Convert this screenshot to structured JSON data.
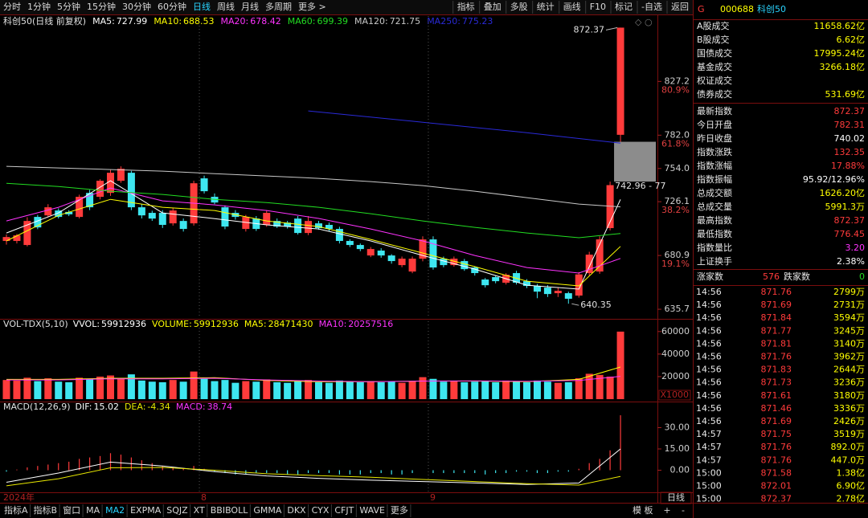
{
  "toolbar": {
    "periods": [
      "分时",
      "1分钟",
      "5分钟",
      "15分钟",
      "30分钟",
      "60分钟",
      "日线",
      "周线",
      "月线",
      "多周期",
      "更多 >"
    ],
    "active": 6,
    "buttons": [
      "指标",
      "叠加",
      "多股",
      "统计",
      "画线",
      "F10",
      "标记",
      "-自选",
      "返回"
    ]
  },
  "chart_data": [
    {
      "type": "candlestick",
      "title": "科创50(日线 前复权)",
      "up_color": "#ff3b3b",
      "down_color": "#3ee6f0",
      "ylim": [
        629,
        874
      ],
      "yticks": [
        635.7,
        680.9,
        726.1,
        {
          "value": 754,
          "label": "754.0"
        },
        {
          "value": 782,
          "label": "782.0"
        },
        827.2
      ],
      "fib_ticks": [
        {
          "value": 680.9,
          "label": "19.1%"
        },
        {
          "value": 726.1,
          "label": "38.2%"
        },
        {
          "value": 782,
          "label": "61.8%"
        },
        {
          "value": 827.2,
          "label": "80.9%"
        }
      ],
      "x_labels": [
        {
          "index": 0,
          "label": "2024年"
        },
        {
          "index": 19,
          "label": "8"
        },
        {
          "index": 41,
          "label": "9"
        }
      ],
      "open": [
        693.1,
        693.1,
        689.7,
        713.3,
        714.6,
        718.7,
        717.5,
        713.3,
        733.5,
        730.2,
        733.5,
        743.7,
        750.4,
        721.4,
        716.7,
        716.7,
        707.9,
        709.9,
        707.9,
        745.7,
        730.2,
        721.4,
        716.7,
        703.2,
        711.9,
        706.6,
        709.9,
        708.5,
        711.9,
        699.8,
        707.9,
        706.6,
        703.2,
        693.1,
        689.7,
        680.9,
        685.0,
        680.9,
        672.8,
        667.4,
        678.2,
        694.4,
        678.2,
        672.8,
        676.2,
        670.8,
        660.7,
        662.7,
        658.0,
        666.1,
        659.3,
        655.3,
        653.9,
        649.2,
        649.2,
        647.2,
        666.1,
        667.4,
        703.9,
        782.31
      ],
      "high": [
        698.5,
        699.0,
        713.0,
        715.0,
        724.0,
        720.5,
        719.0,
        732.0,
        736.0,
        745.0,
        753.0,
        755.8,
        752.0,
        724.0,
        718.5,
        719.0,
        721.0,
        712.0,
        743.7,
        748.0,
        733.0,
        723.0,
        719.0,
        715.0,
        714.0,
        719.0,
        712.0,
        710.0,
        714.0,
        714.0,
        710.0,
        708.5,
        705.0,
        694.5,
        691.0,
        688.0,
        687.0,
        682.0,
        680.0,
        680.0,
        697.0,
        697.0,
        680.0,
        680.0,
        678.0,
        672.0,
        662.0,
        664.0,
        666.0,
        668.0,
        661.0,
        657.0,
        656.0,
        654.0,
        650.5,
        667.0,
        684.0,
        697.0,
        742.96,
        872.37
      ],
      "low": [
        690.0,
        691.0,
        688.5,
        703.0,
        713.0,
        712.0,
        714.0,
        712.0,
        719.0,
        728.0,
        731.0,
        742.0,
        719.0,
        712.0,
        710.0,
        704.0,
        706.0,
        701.0,
        706.0,
        733.0,
        724.0,
        703.0,
        711.0,
        701.0,
        701.5,
        705.0,
        704.0,
        703.5,
        698.5,
        698.0,
        702.5,
        701.0,
        691.0,
        688.0,
        684.5,
        679.5,
        679.0,
        674.0,
        671.0,
        666.0,
        676.0,
        669.0,
        671.0,
        671.5,
        668.0,
        664.0,
        654.0,
        657.5,
        656.5,
        656.5,
        653.5,
        645.0,
        646.0,
        646.0,
        640.35,
        645.5,
        664.0,
        665.5,
        702.0,
        776.45
      ],
      "close": [
        696.4,
        697.8,
        709.9,
        704.5,
        721.4,
        713.3,
        715.5,
        730.2,
        721.4,
        743.7,
        750.4,
        753.8,
        721.4,
        714.6,
        711.9,
        706.6,
        718.7,
        703.2,
        741.6,
        734.9,
        725.4,
        705.2,
        713.3,
        713.3,
        703.2,
        716.7,
        705.2,
        705.2,
        699.8,
        709.9,
        703.9,
        703.2,
        693.1,
        689.7,
        686.3,
        686.3,
        680.9,
        676.2,
        678.2,
        678.2,
        694.4,
        670.8,
        672.8,
        678.2,
        669.4,
        666.1,
        655.9,
        659.3,
        664.7,
        658.0,
        655.3,
        650.5,
        648.5,
        651.2,
        644.5,
        665.0,
        681.6,
        694.4,
        740.02,
        872.37
      ],
      "lines": [
        {
          "name": "MA5:",
          "color": "#ffffff",
          "x": [
            0,
            5,
            10,
            15,
            20,
            25,
            30,
            35,
            40,
            45,
            50,
            55,
            59
          ],
          "values": [
            699.8,
            716.7,
            743.7,
            716.7,
            711.9,
            706.6,
            703.2,
            693.1,
            680.9,
            669.4,
            655.9,
            652.6,
            727.99
          ]
        },
        {
          "name": "MA10:",
          "color": "#ffff00",
          "x": [
            0,
            5,
            10,
            15,
            20,
            25,
            30,
            35,
            40,
            45,
            50,
            55,
            59
          ],
          "values": [
            693.1,
            714.6,
            728.1,
            721.4,
            718.7,
            709.9,
            705.2,
            694.4,
            682.9,
            671.5,
            659.3,
            655.3,
            688.53
          ]
        },
        {
          "name": "MA20:",
          "color": "#ff33ff",
          "x": [
            0,
            5,
            10,
            15,
            20,
            25,
            30,
            35,
            40,
            45,
            50,
            55,
            59
          ],
          "values": [
            709.9,
            721.4,
            737.6,
            726.8,
            723.4,
            718.7,
            712.0,
            703.2,
            693.1,
            680.9,
            670.8,
            666.1,
            678.42
          ]
        },
        {
          "name": "MA60:",
          "color": "#22dd22",
          "x": [
            0,
            5,
            10,
            15,
            20,
            25,
            30,
            35,
            40,
            45,
            50,
            55,
            59
          ],
          "values": [
            741.6,
            738.9,
            734.9,
            732.2,
            728.1,
            725.4,
            721.4,
            716.0,
            709.9,
            704.5,
            699.8,
            695.8,
            699.39
          ]
        },
        {
          "name": "MA120:",
          "color": "#c8c8c8",
          "x": [
            0,
            5,
            10,
            15,
            20,
            25,
            30,
            35,
            40,
            45,
            50,
            55,
            59
          ],
          "values": [
            755.8,
            754.5,
            753.1,
            751.8,
            749.7,
            747.7,
            745.7,
            743.0,
            739.6,
            734.9,
            729.5,
            724.1,
            721.75
          ]
        },
        {
          "name": "MA250:",
          "color": "#2a2ad8",
          "x": [
            29,
            40,
            50,
            59
          ],
          "values": [
            802.4,
            792.9,
            784.1,
            775.23
          ]
        }
      ],
      "gap": {
        "range": [
          742.96,
          776.45
        ],
        "label": "742.96 - 77"
      }
    },
    {
      "type": "bar",
      "title": "VOL-TDX(5,10)",
      "ylim": [
        0,
        62000
      ],
      "yticks": [
        20000,
        40000,
        60000
      ],
      "unit": "X1000",
      "header": [
        {
          "name": "VVOL:",
          "value": 59912936,
          "color": "#ffffff"
        },
        {
          "name": "VOLUME:",
          "value": 59912936,
          "color": "#ffff00"
        },
        {
          "name": "MA5:",
          "value": 28471430,
          "color": "#ffff00"
        },
        {
          "name": "MA10:",
          "value": 20257516,
          "color": "#ff33ff"
        }
      ],
      "values": [
        17000,
        16500,
        19000,
        16000,
        18500,
        15500,
        15000,
        19000,
        17500,
        20000,
        21000,
        18000,
        22000,
        16500,
        15500,
        15000,
        17000,
        15500,
        24500,
        18000,
        16000,
        17000,
        14500,
        16000,
        15500,
        17500,
        15000,
        14500,
        16000,
        17000,
        15000,
        14500,
        16500,
        15500,
        15000,
        16000,
        15000,
        15500,
        14500,
        16000,
        19500,
        18000,
        15500,
        16000,
        15000,
        15500,
        16000,
        15000,
        16500,
        15500,
        15000,
        16500,
        15500,
        14500,
        15000,
        18500,
        22500,
        21500,
        20000,
        59912.936
      ],
      "lines": [
        {
          "color": "#ffff00",
          "x": [
            0,
            5,
            10,
            15,
            20,
            25,
            30,
            35,
            40,
            45,
            50,
            55,
            59
          ],
          "values": [
            17500,
            17500,
            18500,
            18500,
            19000,
            16500,
            15500,
            15500,
            16000,
            16000,
            15500,
            17500,
            28471.43
          ]
        },
        {
          "color": "#ff33ff",
          "x": [
            0,
            5,
            10,
            15,
            20,
            25,
            30,
            35,
            40,
            45,
            50,
            55,
            59
          ],
          "values": [
            17000,
            17000,
            18000,
            18000,
            18500,
            17000,
            16000,
            15500,
            16000,
            16200,
            15800,
            16500,
            20257.516
          ]
        }
      ]
    },
    {
      "type": "macd",
      "title": "MACD(12,26,9)",
      "ylim": [
        -15,
        45
      ],
      "yticks": [
        {
          "value": 0,
          "label": "0.00"
        },
        {
          "value": 15,
          "label": "15.00"
        },
        {
          "value": 30,
          "label": "30.00"
        }
      ],
      "histogram": {
        "name": "MACD:",
        "color": "#ffff00",
        "values": [
          -1,
          0.5,
          2,
          3,
          4,
          5,
          6,
          8,
          9,
          10,
          12,
          11,
          9,
          7,
          5,
          3,
          2,
          1,
          3,
          1,
          -1,
          -2,
          -3,
          -3,
          -2,
          -2,
          -2,
          -3,
          -3,
          -2,
          -2,
          -2,
          -3,
          -3,
          -3,
          -2,
          -2,
          -3,
          -3,
          -2,
          0,
          -2,
          -2,
          -2,
          -2,
          -2,
          -3,
          -2,
          -2,
          -1,
          -1,
          -2,
          -2,
          -1,
          -1,
          1,
          5,
          8,
          14,
          38.74
        ]
      },
      "lines": [
        {
          "name": "DIF:",
          "color": "#ffffff",
          "x": [
            0,
            5,
            10,
            15,
            20,
            25,
            30,
            35,
            40,
            45,
            50,
            55,
            59
          ],
          "values": [
            -8.5,
            -2,
            5.7,
            3,
            -1,
            -4,
            -5.7,
            -7,
            -8,
            -9,
            -10,
            -9,
            15.02
          ]
        },
        {
          "name": "DEA:",
          "color": "#e8e800",
          "x": [
            0,
            5,
            10,
            15,
            20,
            25,
            30,
            35,
            40,
            45,
            50,
            55,
            59
          ],
          "values": [
            -11,
            -6,
            1.7,
            2,
            0,
            -2.5,
            -3.8,
            -5,
            -6.5,
            -8,
            -9.5,
            -10.5,
            -4.34
          ]
        }
      ]
    }
  ],
  "bottom": {
    "tabs": [
      "指标A",
      "指标B",
      "窗口",
      "MA",
      "MA2",
      "EXPMA",
      "SQJZ",
      "XT",
      "BBIBOLL",
      "GMMA",
      "DKX",
      "CYX",
      "CFJT",
      "WAVE",
      "更多"
    ],
    "active": 4,
    "template": "模 板",
    "period": "日线",
    "zoom": [
      "+",
      "-"
    ]
  },
  "panel": {
    "market": "G",
    "code": "000688",
    "name": "科创50",
    "turnover": [
      {
        "label": "A股成交",
        "value": "11658.62亿",
        "color": "#ffff00"
      },
      {
        "label": "B股成交",
        "value": "6.62亿",
        "color": "#ffff00"
      },
      {
        "label": "国债成交",
        "value": "17995.24亿",
        "color": "#ffff00"
      },
      {
        "label": "基金成交",
        "value": "3266.18亿",
        "color": "#ffff00"
      },
      {
        "label": "权证成交"
      },
      {
        "label": "债券成交",
        "value": "531.69亿",
        "color": "#ffff00"
      }
    ],
    "quote": [
      {
        "label": "最新指数",
        "value": "872.37",
        "color": "#ff3b3b"
      },
      {
        "label": "今日开盘",
        "value": "782.31",
        "color": "#ff3b3b"
      },
      {
        "label": "昨日收盘",
        "value": "740.02",
        "color": "#ffffff"
      },
      {
        "label": "指数涨跌",
        "value": "132.35",
        "color": "#ff3b3b"
      },
      {
        "label": "指数涨幅",
        "value": "17.88%",
        "color": "#ff3b3b"
      },
      {
        "label": "指数振幅",
        "value": "95.92/12.96%",
        "color": "#ffffff"
      },
      {
        "label": "总成交额",
        "value": "1626.20亿",
        "color": "#ffff00"
      },
      {
        "label": "总成交量",
        "value": "5991.3万",
        "color": "#ffff00"
      },
      {
        "label": "最高指数",
        "value": "872.37",
        "color": "#ff3b3b"
      },
      {
        "label": "最低指数",
        "value": "776.45",
        "color": "#ff3b3b"
      },
      {
        "label": "指数量比",
        "value": "3.20",
        "color": "#ff33ff"
      },
      {
        "label": "上证换手",
        "value": "2.38%",
        "color": "#ffffff"
      }
    ],
    "breadth": {
      "up_label": "涨家数",
      "up": 576,
      "down_label": "跌家数",
      "down": 0
    },
    "trades": [
      [
        "14:56",
        "871.76",
        "2799万"
      ],
      [
        "14:56",
        "871.69",
        "2731万"
      ],
      [
        "14:56",
        "871.84",
        "3594万"
      ],
      [
        "14:56",
        "871.77",
        "3245万"
      ],
      [
        "14:56",
        "871.81",
        "3140万"
      ],
      [
        "14:56",
        "871.76",
        "3962万"
      ],
      [
        "14:56",
        "871.83",
        "2644万"
      ],
      [
        "14:56",
        "871.73",
        "3236万"
      ],
      [
        "14:56",
        "871.61",
        "3180万"
      ],
      [
        "14:56",
        "871.46",
        "3336万"
      ],
      [
        "14:56",
        "871.69",
        "2426万"
      ],
      [
        "14:57",
        "871.75",
        "3519万"
      ],
      [
        "14:57",
        "871.76",
        "892.0万"
      ],
      [
        "14:57",
        "871.76",
        "447.0万"
      ],
      [
        "15:00",
        "871.58",
        "1.38亿"
      ],
      [
        "15:00",
        "872.01",
        "6.90亿"
      ],
      [
        "15:00",
        "872.37",
        "2.78亿"
      ]
    ]
  }
}
